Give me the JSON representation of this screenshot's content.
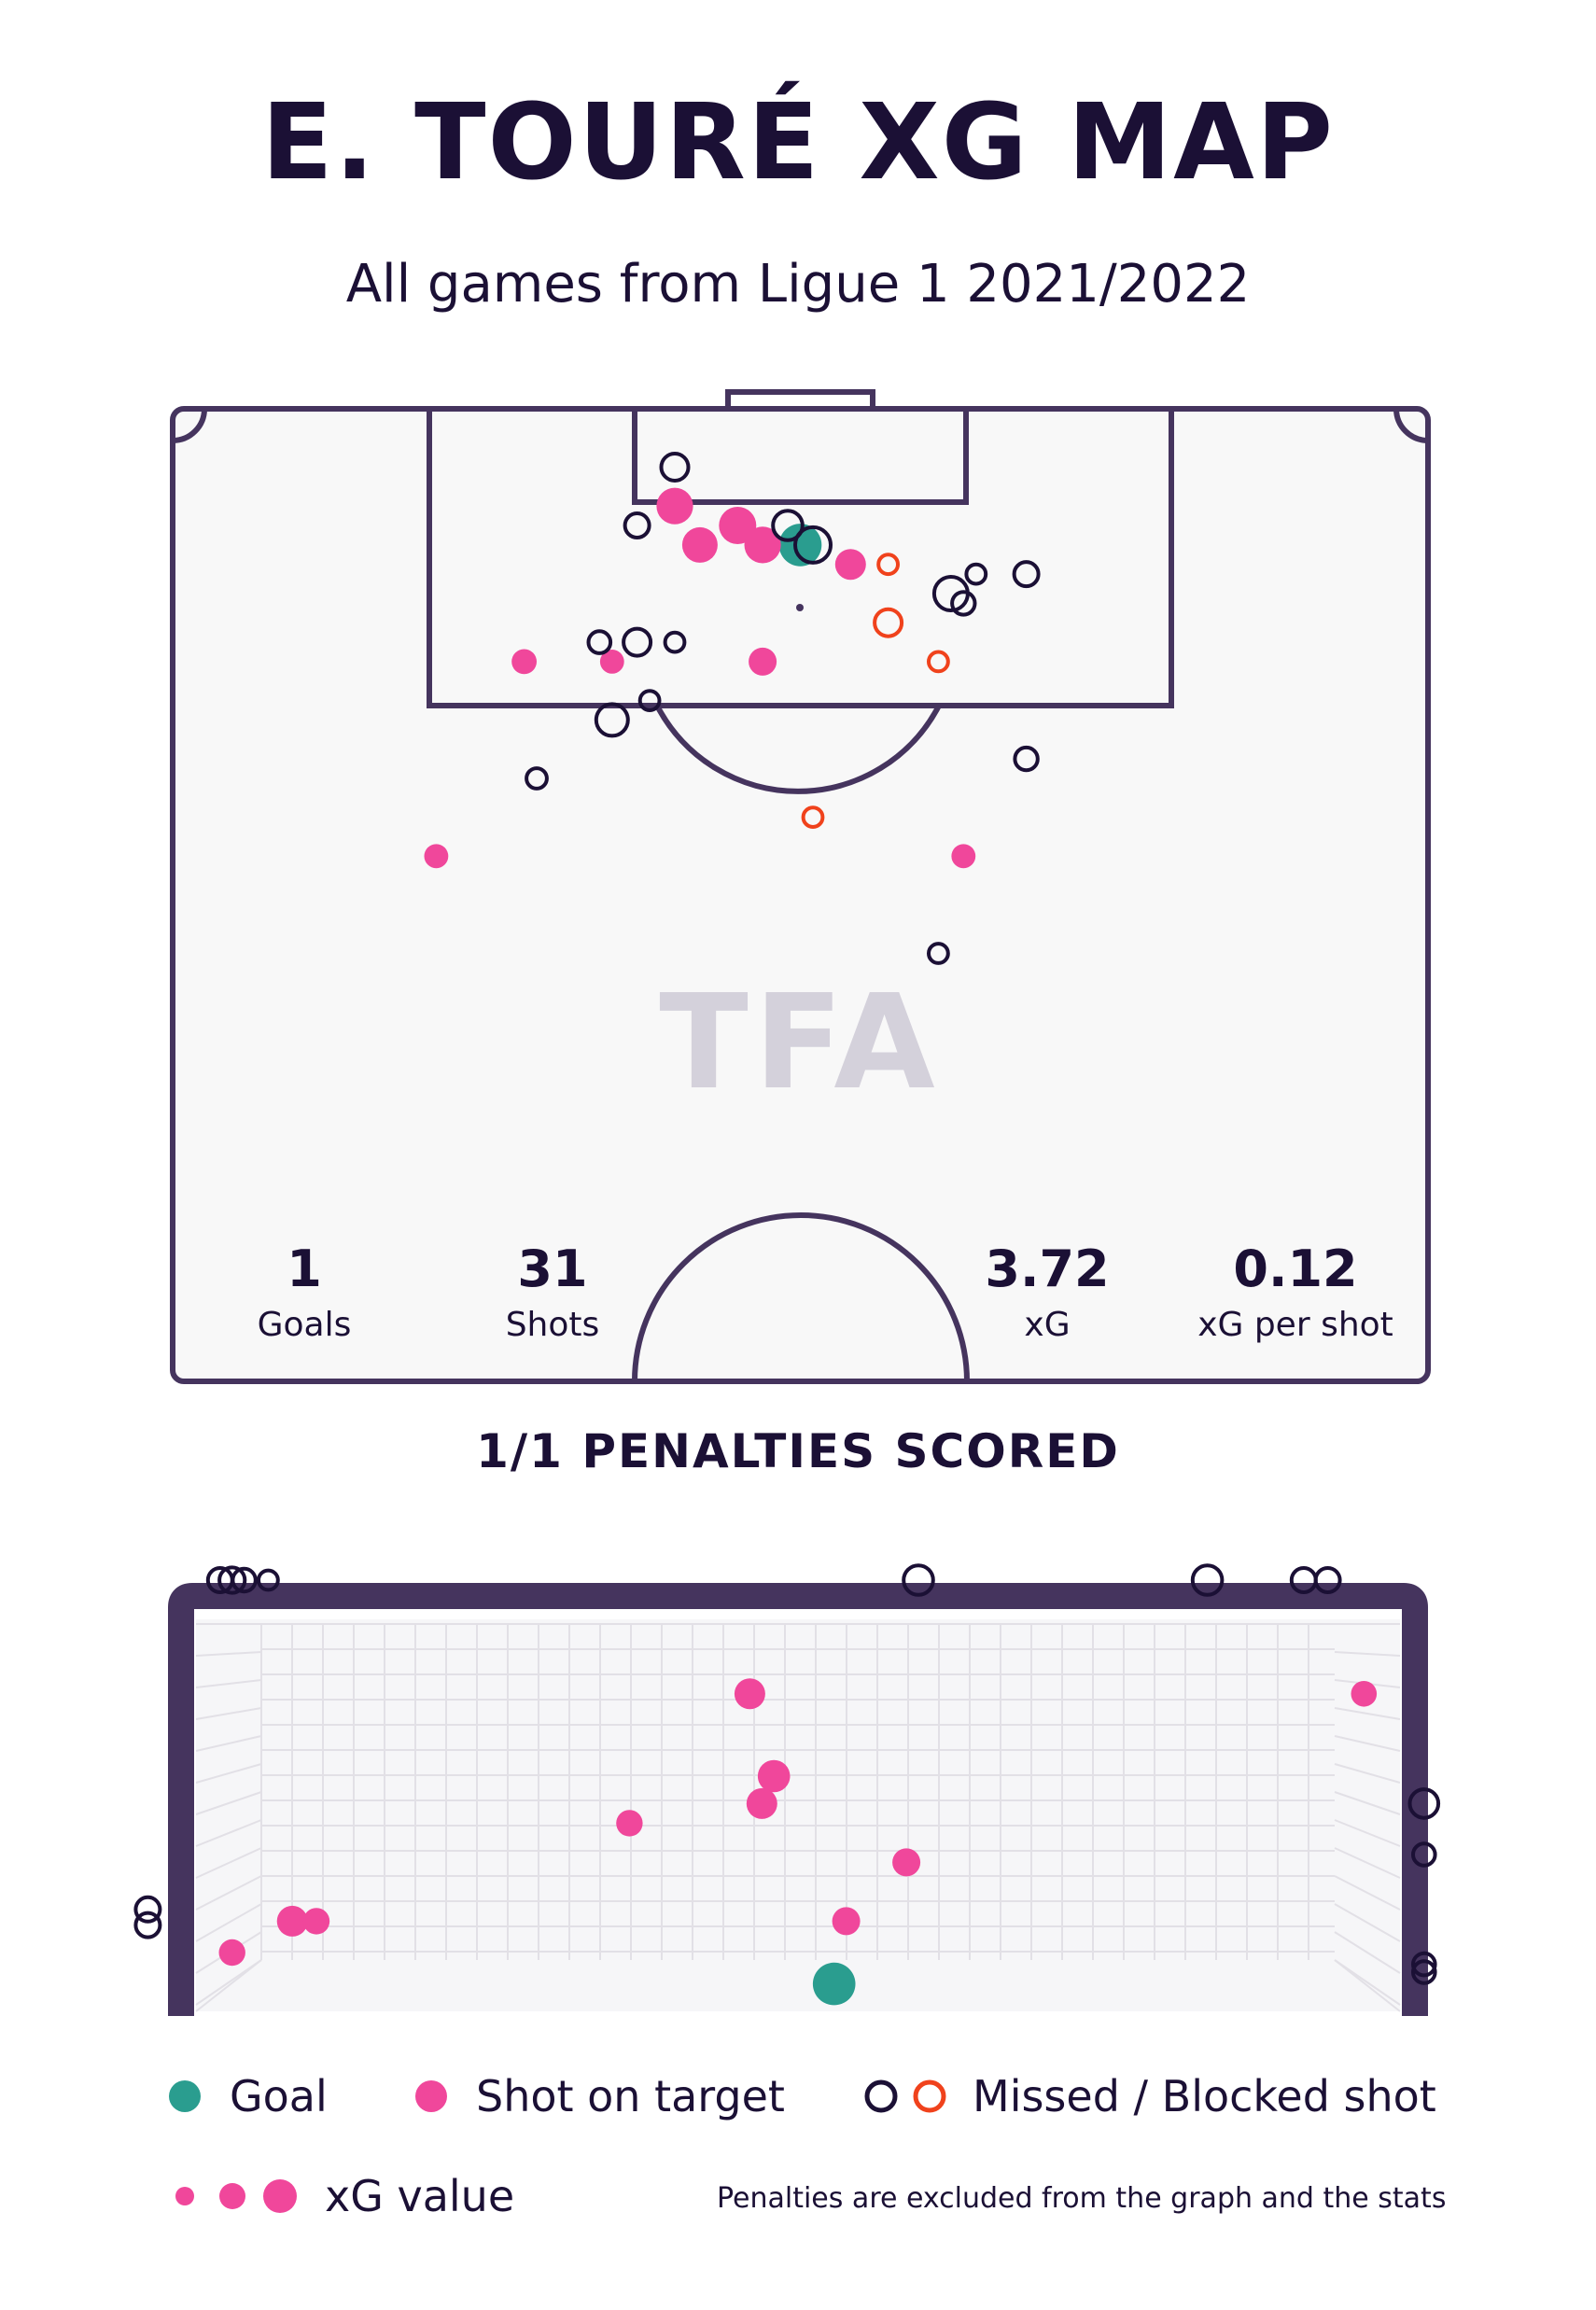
{
  "header": {
    "title": "E. TOURÉ XG MAP",
    "subtitle": "All games from Ligue 1 2021/2022",
    "watermark": "TFA"
  },
  "stats": [
    {
      "value": "1",
      "label": "Goals"
    },
    {
      "value": "31",
      "label": "Shots"
    },
    {
      "value": "3.72",
      "label": "xG"
    },
    {
      "value": "0.12",
      "label": "xG per shot"
    }
  ],
  "penalties_label": "1/1 PENALTIES SCORED",
  "legend": {
    "goal": "Goal",
    "on_target": "Shot on target",
    "missed": "Missed / Blocked shot",
    "xg_value": "xG value",
    "note": "Penalties are excluded from the graph and the stats"
  },
  "colors": {
    "goal": "#2a9d8f",
    "on_target": "#f0479b",
    "missed": "#1b1035",
    "blocked": "#f0421c",
    "pitch_line": "#45345e",
    "pitch_fill": "#f8f8f8"
  },
  "chart_data": [
    {
      "type": "scatter",
      "series": [
        {
          "name": "Goal",
          "points": [
            [
              0.5,
              0.14,
              0.45
            ]
          ]
        },
        {
          "name": "Shot on target",
          "points": [
            [
              0.4,
              0.1,
              0.28
            ],
            [
              0.45,
              0.12,
              0.3
            ],
            [
              0.42,
              0.14,
              0.25
            ],
            [
              0.47,
              0.14,
              0.28
            ],
            [
              0.54,
              0.16,
              0.15
            ],
            [
              0.28,
              0.26,
              0.06
            ],
            [
              0.35,
              0.26,
              0.05
            ],
            [
              0.47,
              0.26,
              0.1
            ],
            [
              0.21,
              0.46,
              0.05
            ],
            [
              0.63,
              0.46,
              0.05
            ]
          ]
        },
        {
          "name": "Missed shot",
          "points": [
            [
              0.4,
              0.06,
              0.15
            ],
            [
              0.37,
              0.12,
              0.1
            ],
            [
              0.49,
              0.12,
              0.2
            ],
            [
              0.51,
              0.14,
              0.35
            ],
            [
              0.64,
              0.17,
              0.04
            ],
            [
              0.62,
              0.19,
              0.3
            ],
            [
              0.68,
              0.17,
              0.1
            ],
            [
              0.63,
              0.2,
              0.08
            ],
            [
              0.34,
              0.24,
              0.07
            ],
            [
              0.37,
              0.24,
              0.15
            ],
            [
              0.4,
              0.24,
              0.04
            ],
            [
              0.38,
              0.3,
              0.04
            ],
            [
              0.35,
              0.32,
              0.25
            ],
            [
              0.29,
              0.38,
              0.05
            ],
            [
              0.68,
              0.36,
              0.08
            ],
            [
              0.61,
              0.56,
              0.04
            ]
          ]
        },
        {
          "name": "Blocked shot",
          "points": [
            [
              0.57,
              0.16,
              0.04
            ],
            [
              0.57,
              0.22,
              0.15
            ],
            [
              0.61,
              0.26,
              0.04
            ],
            [
              0.51,
              0.42,
              0.04
            ]
          ]
        }
      ]
    },
    {
      "type": "scatter",
      "series": [
        {
          "name": "Goal",
          "points": [
            [
              0.53,
              0.93,
              0.45
            ]
          ]
        },
        {
          "name": "Shot on target",
          "points": [
            [
              0.46,
              0.19,
              0.15
            ],
            [
              0.48,
              0.4,
              0.18
            ],
            [
              0.47,
              0.47,
              0.15
            ],
            [
              0.36,
              0.52,
              0.08
            ],
            [
              0.59,
              0.62,
              0.1
            ],
            [
              0.08,
              0.77,
              0.15
            ],
            [
              0.1,
              0.77,
              0.08
            ],
            [
              0.03,
              0.85,
              0.08
            ],
            [
              0.54,
              0.77,
              0.1
            ],
            [
              0.97,
              0.19,
              0.07
            ]
          ]
        },
        {
          "name": "Missed / Blocked shot",
          "points": [
            [
              0.02,
              -0.1,
              0.1
            ],
            [
              0.03,
              -0.1,
              0.12
            ],
            [
              0.04,
              -0.1,
              0.08
            ],
            [
              0.06,
              -0.1,
              0.04
            ],
            [
              0.6,
              -0.1,
              0.2
            ],
            [
              0.84,
              -0.1,
              0.2
            ],
            [
              0.92,
              -0.1,
              0.1
            ],
            [
              0.94,
              -0.1,
              0.1
            ],
            [
              -0.04,
              0.74,
              0.1
            ],
            [
              -0.04,
              0.78,
              0.1
            ],
            [
              1.02,
              0.47,
              0.18
            ],
            [
              1.02,
              0.6,
              0.07
            ],
            [
              1.02,
              0.88,
              0.07
            ],
            [
              1.02,
              0.9,
              0.07
            ]
          ]
        }
      ]
    }
  ]
}
